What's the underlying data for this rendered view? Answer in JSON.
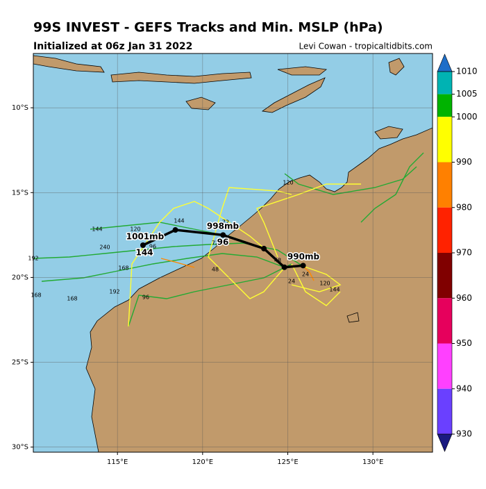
{
  "header": {
    "title": "99S INVEST - GEFS Tracks and Min. MSLP (hPa)",
    "subtitle": "Initialized at 06z Jan 31 2022",
    "credit": "Levi Cowan - tropicaltidbits.com"
  },
  "map": {
    "xlim": [
      110.06,
      133.5
    ],
    "ylim": [
      -30.3,
      -6.8
    ],
    "xticks": [
      {
        "value": 115,
        "label": "115°E"
      },
      {
        "value": 120,
        "label": "120°E"
      },
      {
        "value": 125,
        "label": "125°E"
      },
      {
        "value": 130,
        "label": "130°E"
      }
    ],
    "yticks": [
      {
        "value": -10,
        "label": "10°S"
      },
      {
        "value": -15,
        "label": "15°S"
      },
      {
        "value": -20,
        "label": "20°S"
      },
      {
        "value": -25,
        "label": "25°S"
      },
      {
        "value": -30,
        "label": "30°S"
      }
    ],
    "grid": true,
    "mean_track": {
      "color": "#000000",
      "lon": [
        116.5,
        118.4,
        121.2,
        123.6,
        124.8,
        125.9
      ],
      "lat": [
        -18.1,
        -17.2,
        -17.5,
        -18.3,
        -19.4,
        -19.3
      ]
    },
    "pressure_labels": [
      "1001mb",
      "144",
      "998mb",
      "96",
      "990mb"
    ],
    "hour_labels": [
      "144",
      "120",
      "168",
      "240",
      "192",
      "96",
      "72",
      "48",
      "24",
      "120",
      "144",
      "168",
      "192",
      "96",
      "72",
      "48",
      "24",
      "120",
      "144",
      "168"
    ]
  },
  "colorbar": {
    "ticks": [
      1010,
      1005,
      1000,
      990,
      980,
      970,
      960,
      950,
      940,
      930
    ],
    "colors": [
      "#00b3b3",
      "#00b300",
      "#ffff00",
      "#ff8000",
      "#ff2200",
      "#800000",
      "#e6005c",
      "#ff40ff",
      "#6a40ff"
    ],
    "over_color": "#1e6ec8",
    "under_color": "#1a1a80"
  }
}
